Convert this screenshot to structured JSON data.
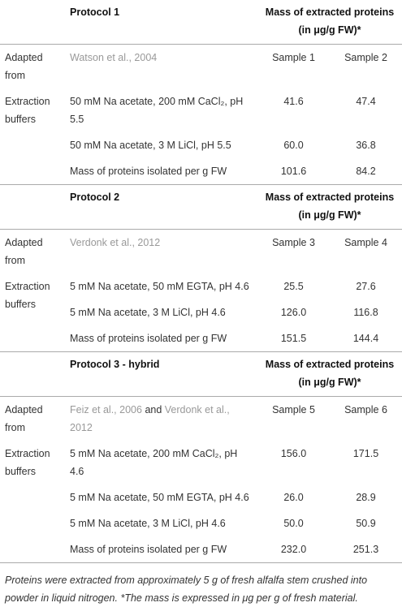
{
  "sections": [
    {
      "title": "Protocol 1",
      "mass_header": "Mass of extracted proteins (in μg/g FW)*",
      "adapted_label": "Adapted from",
      "source": [
        "Watson et al., 2004"
      ],
      "samples": [
        "Sample 1",
        "Sample 2"
      ],
      "buffers_label": "Extraction buffers",
      "rows": [
        {
          "buffer": "50 mM Na acetate, 200 mM CaCl₂, pH 5.5",
          "values": [
            "41.6",
            "47.4"
          ]
        },
        {
          "buffer": "50 mM Na acetate, 3 M LiCl, pH 5.5",
          "values": [
            "60.0",
            "36.8"
          ]
        }
      ],
      "total": {
        "label": "Mass of proteins isolated per g FW",
        "values": [
          "101.6",
          "84.2"
        ]
      }
    },
    {
      "title": "Protocol 2",
      "mass_header": "Mass of extracted proteins (in μg/g FW)*",
      "adapted_label": "Adapted from",
      "source": [
        "Verdonk et al., 2012"
      ],
      "samples": [
        "Sample 3",
        "Sample 4"
      ],
      "buffers_label": "Extraction buffers",
      "rows": [
        {
          "buffer": "5 mM Na acetate, 50 mM EGTA, pH 4.6",
          "values": [
            "25.5",
            "27.6"
          ]
        },
        {
          "buffer": "5 mM Na acetate, 3 M LiCl, pH 4.6",
          "values": [
            "126.0",
            "116.8"
          ]
        }
      ],
      "total": {
        "label": "Mass of proteins isolated per g FW",
        "values": [
          "151.5",
          "144.4"
        ]
      }
    },
    {
      "title": "Protocol 3 - hybrid",
      "mass_header": "Mass of extracted proteins (in μg/g FW)*",
      "adapted_label": "Adapted from",
      "source": [
        "Feiz et al., 2006",
        "and",
        "Verdonk et al., 2012"
      ],
      "samples": [
        "Sample 5",
        "Sample 6"
      ],
      "buffers_label": "Extraction buffers",
      "rows": [
        {
          "buffer": "5 mM Na acetate, 200 mM CaCl₂, pH 4.6",
          "values": [
            "156.0",
            "171.5"
          ]
        },
        {
          "buffer": "5 mM Na acetate, 50 mM EGTA, pH 4.6",
          "values": [
            "26.0",
            "28.9"
          ]
        },
        {
          "buffer": "5 mM Na acetate, 3 M LiCl, pH 4.6",
          "values": [
            "50.0",
            "50.9"
          ]
        }
      ],
      "total": {
        "label": "Mass of proteins isolated per g FW",
        "values": [
          "232.0",
          "251.3"
        ]
      }
    }
  ],
  "footnote": "Proteins were extracted from approximately 5 g of fresh alfalfa stem crushed into powder in liquid nitrogen. *The mass is expressed in μg per g of fresh material."
}
